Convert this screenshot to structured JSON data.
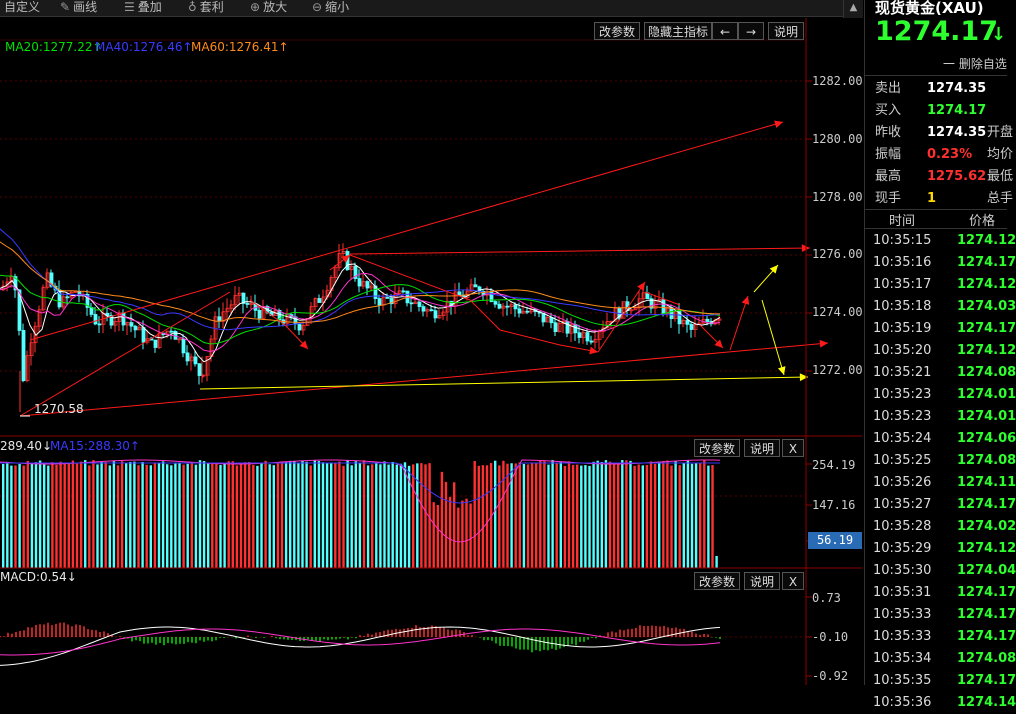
{
  "toolbar": {
    "items": [
      {
        "label": "自定义",
        "icon": "custom-icon"
      },
      {
        "label": "画线",
        "icon": "pen-icon"
      },
      {
        "label": "叠加",
        "icon": "stack-icon"
      },
      {
        "label": "套利",
        "icon": "arbitrage-icon"
      },
      {
        "label": "放大",
        "icon": "zoom-in-icon"
      },
      {
        "label": "缩小",
        "icon": "zoom-out-icon"
      }
    ],
    "scroll_up_icon": "scroll-up-icon"
  },
  "main_chart": {
    "ma_labels": [
      {
        "text": "MA20:1277.22↑",
        "color": "#00e000"
      },
      {
        "text": "MA40:1276.46↑",
        "color": "#3a3aff"
      },
      {
        "text": "MA60:1276.41↑",
        "color": "#ff8a1a"
      }
    ],
    "buttons": [
      "改参数",
      "隐藏主指标",
      "←",
      "→",
      "说明"
    ],
    "y_ticks": [
      "1282.00",
      "1280.00",
      "1278.00",
      "1276.00",
      "1274.00",
      "1272.00"
    ],
    "low_annotation": "1270.58"
  },
  "volume_chart": {
    "labels": [
      {
        "text": "289.40↓",
        "color": "#e8e8e8"
      },
      {
        "text": "MA15:288.30↑",
        "color": "#3a3aff"
      }
    ],
    "buttons": [
      "改参数",
      "说明",
      "X"
    ],
    "y_ticks": [
      "254.19",
      "147.16"
    ],
    "current_value": "56.19"
  },
  "macd_chart": {
    "label": "MACD:0.54↓",
    "buttons": [
      "改参数",
      "说明",
      "X"
    ],
    "y_ticks": [
      "0.73",
      "-0.10",
      "-0.92"
    ]
  },
  "right_panel": {
    "title": "现货黄金(XAU)",
    "price": "1274.17",
    "price_arrow": "↓",
    "delete_label": "一 删除自选",
    "rows": [
      {
        "label": "卖出",
        "value": "1274.35",
        "value_color": "#ffffff",
        "extra": ""
      },
      {
        "label": "买入",
        "value": "1274.17",
        "value_color": "#2eff2e",
        "extra": ""
      },
      {
        "label": "昨收",
        "value": "1274.35",
        "value_color": "#ffffff",
        "extra": "开盘"
      },
      {
        "label": "振幅",
        "value": "0.23%",
        "value_color": "#ff3030",
        "extra": "均价"
      },
      {
        "label": "最高",
        "value": "1275.62",
        "value_color": "#ff3030",
        "extra": "最低"
      },
      {
        "label": "现手",
        "value": "1",
        "value_color": "#ffd700",
        "extra": "总手"
      }
    ],
    "tick_header": {
      "time": "时间",
      "price": "价格"
    },
    "ticks": [
      {
        "time": "10:35:15",
        "price": "1274.12"
      },
      {
        "time": "10:35:16",
        "price": "1274.17"
      },
      {
        "time": "10:35:17",
        "price": "1274.12"
      },
      {
        "time": "10:35:18",
        "price": "1274.03"
      },
      {
        "time": "10:35:19",
        "price": "1274.17"
      },
      {
        "time": "10:35:20",
        "price": "1274.12"
      },
      {
        "time": "10:35:21",
        "price": "1274.08"
      },
      {
        "time": "10:35:23",
        "price": "1274.01"
      },
      {
        "time": "10:35:23",
        "price": "1274.01"
      },
      {
        "time": "10:35:24",
        "price": "1274.06"
      },
      {
        "time": "10:35:25",
        "price": "1274.08"
      },
      {
        "time": "10:35:26",
        "price": "1274.11"
      },
      {
        "time": "10:35:27",
        "price": "1274.17"
      },
      {
        "time": "10:35:28",
        "price": "1274.02"
      },
      {
        "time": "10:35:29",
        "price": "1274.12"
      },
      {
        "time": "10:35:30",
        "price": "1274.04"
      },
      {
        "time": "10:35:31",
        "price": "1274.17"
      },
      {
        "time": "10:35:33",
        "price": "1274.17"
      },
      {
        "time": "10:35:33",
        "price": "1274.17"
      },
      {
        "time": "10:35:34",
        "price": "1274.08"
      },
      {
        "time": "10:35:35",
        "price": "1274.17"
      },
      {
        "time": "10:35:36",
        "price": "1274.14"
      }
    ]
  },
  "colors": {
    "up": "#ff3030",
    "down": "#54ffff",
    "grid": "#550000",
    "ma20": "#00e000",
    "ma40": "#3a3aff",
    "ma60": "#ff8a1a",
    "price_green": "#2eff2e"
  }
}
